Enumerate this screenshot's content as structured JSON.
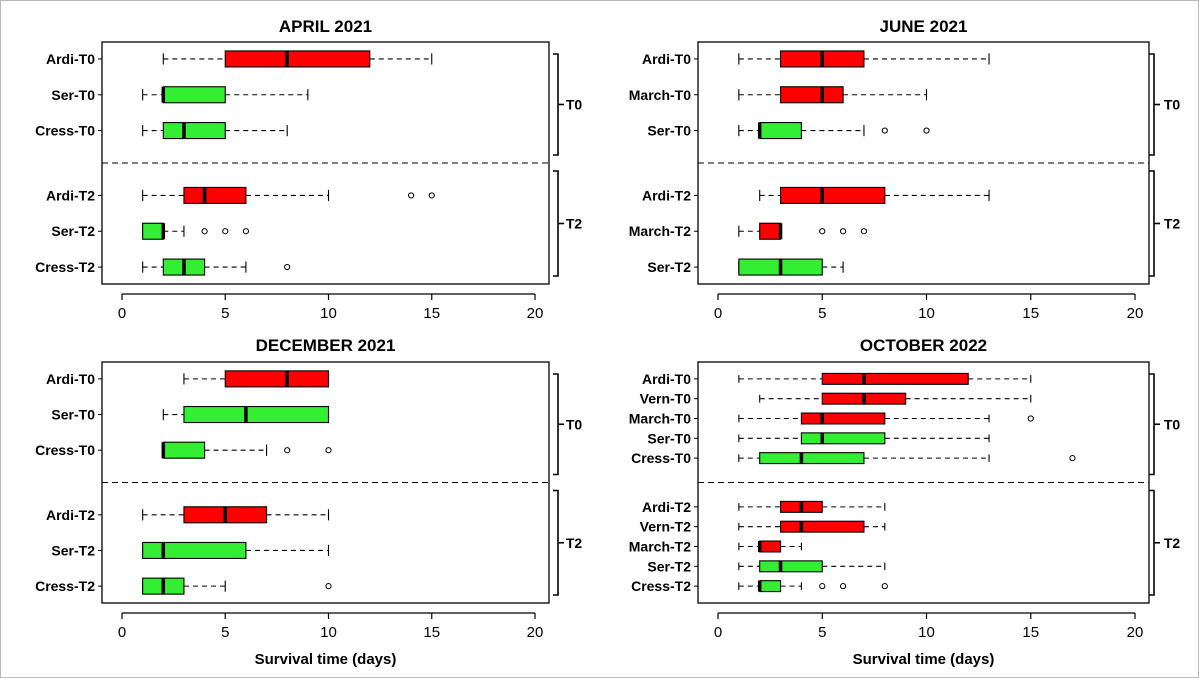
{
  "chart_data": [
    {
      "type": "boxplot",
      "title": "APRIL 2021",
      "xlabel": "",
      "xlim": [
        0,
        20
      ],
      "xticks": [
        0,
        5,
        10,
        15,
        20
      ],
      "colors": {
        "red": "#ff0000",
        "green": "#33ee33"
      },
      "groups": [
        {
          "label": "T0",
          "rows": [
            {
              "label": "Ardi-T0",
              "color": "red",
              "whislo": 2,
              "q1": 5,
              "med": 8,
              "q3": 12,
              "whishi": 15,
              "fliers": []
            },
            {
              "label": "Ser-T0",
              "color": "green",
              "whislo": 1,
              "q1": 2,
              "med": 2,
              "q3": 5,
              "whishi": 9,
              "fliers": []
            },
            {
              "label": "Cress-T0",
              "color": "green",
              "whislo": 1,
              "q1": 2,
              "med": 3,
              "q3": 5,
              "whishi": 8,
              "fliers": []
            }
          ]
        },
        {
          "label": "T2",
          "rows": [
            {
              "label": "Ardi-T2",
              "color": "red",
              "whislo": 1,
              "q1": 3,
              "med": 4,
              "q3": 6,
              "whishi": 10,
              "fliers": [
                14,
                15
              ]
            },
            {
              "label": "Ser-T2",
              "color": "green",
              "whislo": 1,
              "q1": 1,
              "med": 2,
              "q3": 2,
              "whishi": 3,
              "fliers": [
                4,
                5,
                6
              ]
            },
            {
              "label": "Cress-T2",
              "color": "green",
              "whislo": 1,
              "q1": 2,
              "med": 3,
              "q3": 4,
              "whishi": 6,
              "fliers": [
                8
              ]
            }
          ]
        }
      ]
    },
    {
      "type": "boxplot",
      "title": "JUNE 2021",
      "xlabel": "",
      "xlim": [
        0,
        20
      ],
      "xticks": [
        0,
        5,
        10,
        15,
        20
      ],
      "colors": {
        "red": "#ff0000",
        "green": "#33ee33"
      },
      "groups": [
        {
          "label": "T0",
          "rows": [
            {
              "label": "Ardi-T0",
              "color": "red",
              "whislo": 1,
              "q1": 3,
              "med": 5,
              "q3": 7,
              "whishi": 13,
              "fliers": []
            },
            {
              "label": "March-T0",
              "color": "red",
              "whislo": 1,
              "q1": 3,
              "med": 5,
              "q3": 6,
              "whishi": 10,
              "fliers": []
            },
            {
              "label": "Ser-T0",
              "color": "green",
              "whislo": 1,
              "q1": 2,
              "med": 2,
              "q3": 4,
              "whishi": 7,
              "fliers": [
                8,
                10
              ]
            }
          ]
        },
        {
          "label": "T2",
          "rows": [
            {
              "label": "Ardi-T2",
              "color": "red",
              "whislo": 2,
              "q1": 3,
              "med": 5,
              "q3": 8,
              "whishi": 13,
              "fliers": []
            },
            {
              "label": "March-T2",
              "color": "red",
              "whislo": 1,
              "q1": 2,
              "med": 3,
              "q3": 3,
              "whishi": 3,
              "fliers": [
                5,
                6,
                7
              ]
            },
            {
              "label": "Ser-T2",
              "color": "green",
              "whislo": 1,
              "q1": 1,
              "med": 3,
              "q3": 5,
              "whishi": 6,
              "fliers": []
            }
          ]
        }
      ]
    },
    {
      "type": "boxplot",
      "title": "DECEMBER 2021",
      "xlabel": "Survival time (days)",
      "xlim": [
        0,
        20
      ],
      "xticks": [
        0,
        5,
        10,
        15,
        20
      ],
      "colors": {
        "red": "#ff0000",
        "green": "#33ee33"
      },
      "groups": [
        {
          "label": "T0",
          "rows": [
            {
              "label": "Ardi-T0",
              "color": "red",
              "whislo": 3,
              "q1": 5,
              "med": 8,
              "q3": 10,
              "whishi": 10,
              "fliers": []
            },
            {
              "label": "Ser-T0",
              "color": "green",
              "whislo": 2,
              "q1": 3,
              "med": 6,
              "q3": 10,
              "whishi": 10,
              "fliers": []
            },
            {
              "label": "Cress-T0",
              "color": "green",
              "whislo": 2,
              "q1": 2,
              "med": 2,
              "q3": 4,
              "whishi": 7,
              "fliers": [
                8,
                10
              ]
            }
          ]
        },
        {
          "label": "T2",
          "rows": [
            {
              "label": "Ardi-T2",
              "color": "red",
              "whislo": 1,
              "q1": 3,
              "med": 5,
              "q3": 7,
              "whishi": 10,
              "fliers": []
            },
            {
              "label": "Ser-T2",
              "color": "green",
              "whislo": 1,
              "q1": 1,
              "med": 2,
              "q3": 6,
              "whishi": 10,
              "fliers": []
            },
            {
              "label": "Cress-T2",
              "color": "green",
              "whislo": 1,
              "q1": 1,
              "med": 2,
              "q3": 3,
              "whishi": 5,
              "fliers": [
                10
              ]
            }
          ]
        }
      ]
    },
    {
      "type": "boxplot",
      "title": "OCTOBER 2022",
      "xlabel": "Survival time (days)",
      "xlim": [
        0,
        20
      ],
      "xticks": [
        0,
        5,
        10,
        15,
        20
      ],
      "colors": {
        "red": "#ff0000",
        "green": "#33ee33"
      },
      "groups": [
        {
          "label": "T0",
          "rows": [
            {
              "label": "Ardi-T0",
              "color": "red",
              "whislo": 1,
              "q1": 5,
              "med": 7,
              "q3": 12,
              "whishi": 15,
              "fliers": []
            },
            {
              "label": "Vern-T0",
              "color": "red",
              "whislo": 2,
              "q1": 5,
              "med": 7,
              "q3": 9,
              "whishi": 15,
              "fliers": []
            },
            {
              "label": "March-T0",
              "color": "red",
              "whislo": 1,
              "q1": 4,
              "med": 5,
              "q3": 8,
              "whishi": 13,
              "fliers": [
                15
              ]
            },
            {
              "label": "Ser-T0",
              "color": "green",
              "whislo": 1,
              "q1": 4,
              "med": 5,
              "q3": 8,
              "whishi": 13,
              "fliers": []
            },
            {
              "label": "Cress-T0",
              "color": "green",
              "whislo": 1,
              "q1": 2,
              "med": 4,
              "q3": 7,
              "whishi": 13,
              "fliers": [
                17
              ]
            }
          ]
        },
        {
          "label": "T2",
          "rows": [
            {
              "label": "Ardi-T2",
              "color": "red",
              "whislo": 1,
              "q1": 3,
              "med": 4,
              "q3": 5,
              "whishi": 8,
              "fliers": []
            },
            {
              "label": "Vern-T2",
              "color": "red",
              "whislo": 1,
              "q1": 3,
              "med": 4,
              "q3": 7,
              "whishi": 8,
              "fliers": []
            },
            {
              "label": "March-T2",
              "color": "red",
              "whislo": 1,
              "q1": 2,
              "med": 2,
              "q3": 3,
              "whishi": 4,
              "fliers": []
            },
            {
              "label": "Ser-T2",
              "color": "green",
              "whislo": 1,
              "q1": 2,
              "med": 3,
              "q3": 5,
              "whishi": 8,
              "fliers": []
            },
            {
              "label": "Cress-T2",
              "color": "green",
              "whislo": 1,
              "q1": 2,
              "med": 2,
              "q3": 3,
              "whishi": 4,
              "fliers": [
                5,
                6,
                8
              ]
            }
          ]
        }
      ]
    }
  ]
}
